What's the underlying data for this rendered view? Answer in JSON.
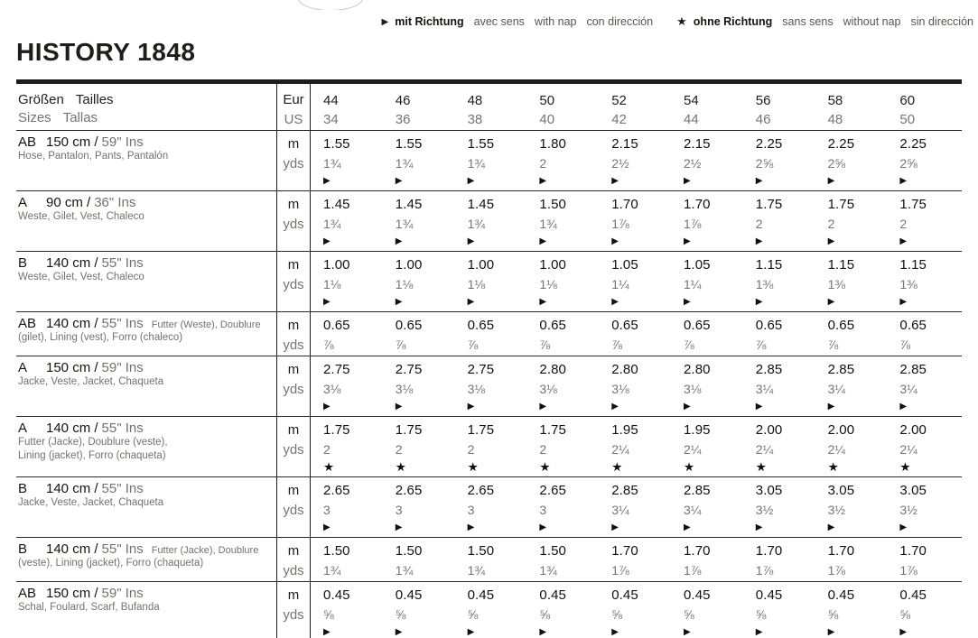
{
  "title": "HISTORY 1848",
  "legend": {
    "groups": [
      {
        "symbol": "▶",
        "label_bold": "mit Richtung",
        "labels": [
          "avec sens",
          "with nap",
          "con dirección"
        ]
      },
      {
        "symbol": "★",
        "label_bold": "ohne Richtung",
        "labels": [
          "sans sens",
          "without nap",
          "sin dirección"
        ]
      }
    ]
  },
  "table": {
    "units": {
      "m": "m",
      "yds": "yds"
    },
    "header": {
      "label_de": "Größen",
      "label_fr": "Tailles",
      "label_en": "Sizes",
      "label_es": "Tallas",
      "unit_eur": "Eur",
      "unit_us": "US",
      "sizes_eur": [
        "44",
        "46",
        "48",
        "50",
        "52",
        "54",
        "56",
        "58",
        "60"
      ],
      "sizes_us": [
        "34",
        "36",
        "38",
        "40",
        "42",
        "44",
        "46",
        "48",
        "50"
      ]
    },
    "rows": [
      {
        "view": "AB",
        "width": "150 cm /",
        "ins": "59\" Ins",
        "note": "",
        "subtitle": "Hose, Pantalon, Pants, Pantalón",
        "subtitle2": "",
        "m": [
          "1.55",
          "1.55",
          "1.55",
          "1.80",
          "2.15",
          "2.15",
          "2.25",
          "2.25",
          "2.25"
        ],
        "yds": [
          "1¾",
          "1¾",
          "1¾",
          "2",
          "2½",
          "2½",
          "2⅝",
          "2⅝",
          "2⅝"
        ],
        "symbol": "▶"
      },
      {
        "view": "A",
        "width": "90 cm /",
        "ins": "36\" Ins",
        "note": "",
        "subtitle": "Weste, Gilet, Vest, Chaleco",
        "subtitle2": "",
        "m": [
          "1.45",
          "1.45",
          "1.45",
          "1.50",
          "1.70",
          "1.70",
          "1.75",
          "1.75",
          "1.75"
        ],
        "yds": [
          "1¾",
          "1¾",
          "1¾",
          "1¾",
          "1⅞",
          "1⅞",
          "2",
          "2",
          "2"
        ],
        "symbol": "▶"
      },
      {
        "view": "B",
        "width": "140 cm /",
        "ins": "55\" Ins",
        "note": "",
        "subtitle": "Weste, Gilet, Vest, Chaleco",
        "subtitle2": "",
        "m": [
          "1.00",
          "1.00",
          "1.00",
          "1.00",
          "1.05",
          "1.05",
          "1.15",
          "1.15",
          "1.15"
        ],
        "yds": [
          "1⅛",
          "1⅛",
          "1⅛",
          "1⅛",
          "1¼",
          "1¼",
          "1⅜",
          "1⅜",
          "1⅜"
        ],
        "symbol": "▶"
      },
      {
        "view": "AB",
        "width": "140 cm /",
        "ins": "55\" Ins",
        "note": "Futter (Weste), Doublure",
        "subtitle": "(gilet), Lining (vest), Forro (chaleco)",
        "subtitle2": "",
        "m": [
          "0.65",
          "0.65",
          "0.65",
          "0.65",
          "0.65",
          "0.65",
          "0.65",
          "0.65",
          "0.65"
        ],
        "yds": [
          "⅞",
          "⅞",
          "⅞",
          "⅞",
          "⅞",
          "⅞",
          "⅞",
          "⅞",
          "⅞"
        ],
        "symbol": ""
      },
      {
        "view": "A",
        "width": "150 cm /",
        "ins": "59\" Ins",
        "note": "",
        "subtitle": "Jacke, Veste, Jacket, Chaqueta",
        "subtitle2": "",
        "m": [
          "2.75",
          "2.75",
          "2.75",
          "2.80",
          "2.80",
          "2.80",
          "2.85",
          "2.85",
          "2.85"
        ],
        "yds": [
          "3⅛",
          "3⅛",
          "3⅛",
          "3⅛",
          "3⅛",
          "3⅛",
          "3¼",
          "3¼",
          "3¼"
        ],
        "symbol": "▶"
      },
      {
        "view": "A",
        "width": "140 cm /",
        "ins": "55\" Ins",
        "note": "",
        "subtitle": "Futter (Jacke), Doublure (veste),",
        "subtitle2": "Lining (jacket), Forro (chaqueta)",
        "m": [
          "1.75",
          "1.75",
          "1.75",
          "1.75",
          "1.95",
          "1.95",
          "2.00",
          "2.00",
          "2.00"
        ],
        "yds": [
          "2",
          "2",
          "2",
          "2",
          "2¼",
          "2¼",
          "2¼",
          "2¼",
          "2¼"
        ],
        "symbol": "★"
      },
      {
        "view": "B",
        "width": "140 cm /",
        "ins": "55\" Ins",
        "note": "",
        "subtitle": "Jacke, Veste, Jacket, Chaqueta",
        "subtitle2": "",
        "m": [
          "2.65",
          "2.65",
          "2.65",
          "2.65",
          "2.85",
          "2.85",
          "3.05",
          "3.05",
          "3.05"
        ],
        "yds": [
          "3",
          "3",
          "3",
          "3",
          "3¼",
          "3¼",
          "3½",
          "3½",
          "3½"
        ],
        "symbol": "▶"
      },
      {
        "view": "B",
        "width": "140 cm /",
        "ins": "55\" Ins",
        "note": "Futter (Jacke), Doublure",
        "subtitle": "(veste), Lining (jacket), Forro (chaqueta)",
        "subtitle2": "",
        "m": [
          "1.50",
          "1.50",
          "1.50",
          "1.50",
          "1.70",
          "1.70",
          "1.70",
          "1.70",
          "1.70"
        ],
        "yds": [
          "1¾",
          "1¾",
          "1¾",
          "1¾",
          "1⅞",
          "1⅞",
          "1⅞",
          "1⅞",
          "1⅞"
        ],
        "symbol": ""
      },
      {
        "view": "AB",
        "width": "150 cm /",
        "ins": "59\" Ins",
        "note": "",
        "subtitle": "Schal, Foulard, Scarf, Bufanda",
        "subtitle2": "",
        "m": [
          "0.45",
          "0.45",
          "0.45",
          "0.45",
          "0.45",
          "0.45",
          "0.45",
          "0.45",
          "0.45"
        ],
        "yds": [
          "⅝",
          "⅝",
          "⅝",
          "⅝",
          "⅝",
          "⅝",
          "⅝",
          "⅝",
          "⅝"
        ],
        "symbol": "▶"
      }
    ]
  }
}
